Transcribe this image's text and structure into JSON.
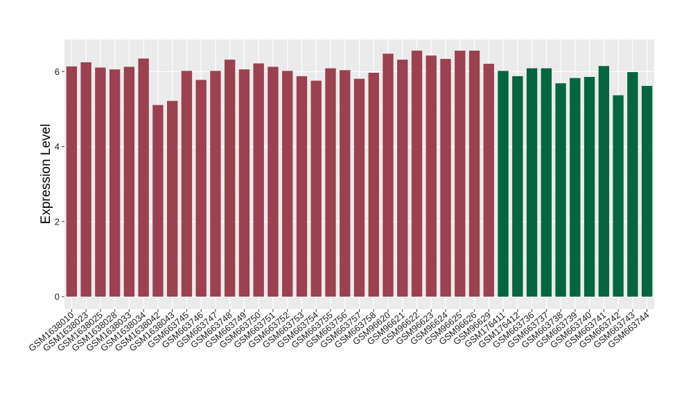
{
  "chart_data": {
    "type": "bar",
    "title": "",
    "xlabel": "",
    "ylabel": "Expression Level",
    "ylim": [
      0,
      6.85
    ],
    "yticks": [
      0,
      2,
      4,
      6
    ],
    "grid": true,
    "legend": "none",
    "colors": {
      "group_a": "#9b4150",
      "group_b": "#036641",
      "panel": "#ebebeb",
      "grid": "#ffffff"
    },
    "categories": [
      "GSM1638010",
      "GSM1638023",
      "GSM1638025",
      "GSM1638028",
      "GSM1638033",
      "GSM1638034",
      "GSM1638042",
      "GSM1638043",
      "GSM663745",
      "GSM663746",
      "GSM663747",
      "GSM663748",
      "GSM663749",
      "GSM663750",
      "GSM663751",
      "GSM663752",
      "GSM663753",
      "GSM663754",
      "GSM663755",
      "GSM663756",
      "GSM663757",
      "GSM663758",
      "GSM96620",
      "GSM96621",
      "GSM96622",
      "GSM96623",
      "GSM96624",
      "GSM96625",
      "GSM96626",
      "GSM96629",
      "GSM176411",
      "GSM176412",
      "GSM663736",
      "GSM663737",
      "GSM663738",
      "GSM663739",
      "GSM663740",
      "GSM663741",
      "GSM663742",
      "GSM663743",
      "GSM663744"
    ],
    "values": [
      6.14,
      6.25,
      6.11,
      6.06,
      6.13,
      6.35,
      5.11,
      5.22,
      6.02,
      5.78,
      6.02,
      6.32,
      6.06,
      6.22,
      6.13,
      6.02,
      5.88,
      5.76,
      6.09,
      6.04,
      5.81,
      5.97,
      6.48,
      6.32,
      6.56,
      6.43,
      6.34,
      6.56,
      6.56,
      6.21,
      6.02,
      5.88,
      6.09,
      6.09,
      5.69,
      5.83,
      5.86,
      6.15,
      5.37,
      5.99,
      5.62
    ],
    "groups": [
      "a",
      "a",
      "a",
      "a",
      "a",
      "a",
      "a",
      "a",
      "a",
      "a",
      "a",
      "a",
      "a",
      "a",
      "a",
      "a",
      "a",
      "a",
      "a",
      "a",
      "a",
      "a",
      "a",
      "a",
      "a",
      "a",
      "a",
      "a",
      "a",
      "a",
      "b",
      "b",
      "b",
      "b",
      "b",
      "b",
      "b",
      "b",
      "b",
      "b",
      "b"
    ]
  }
}
